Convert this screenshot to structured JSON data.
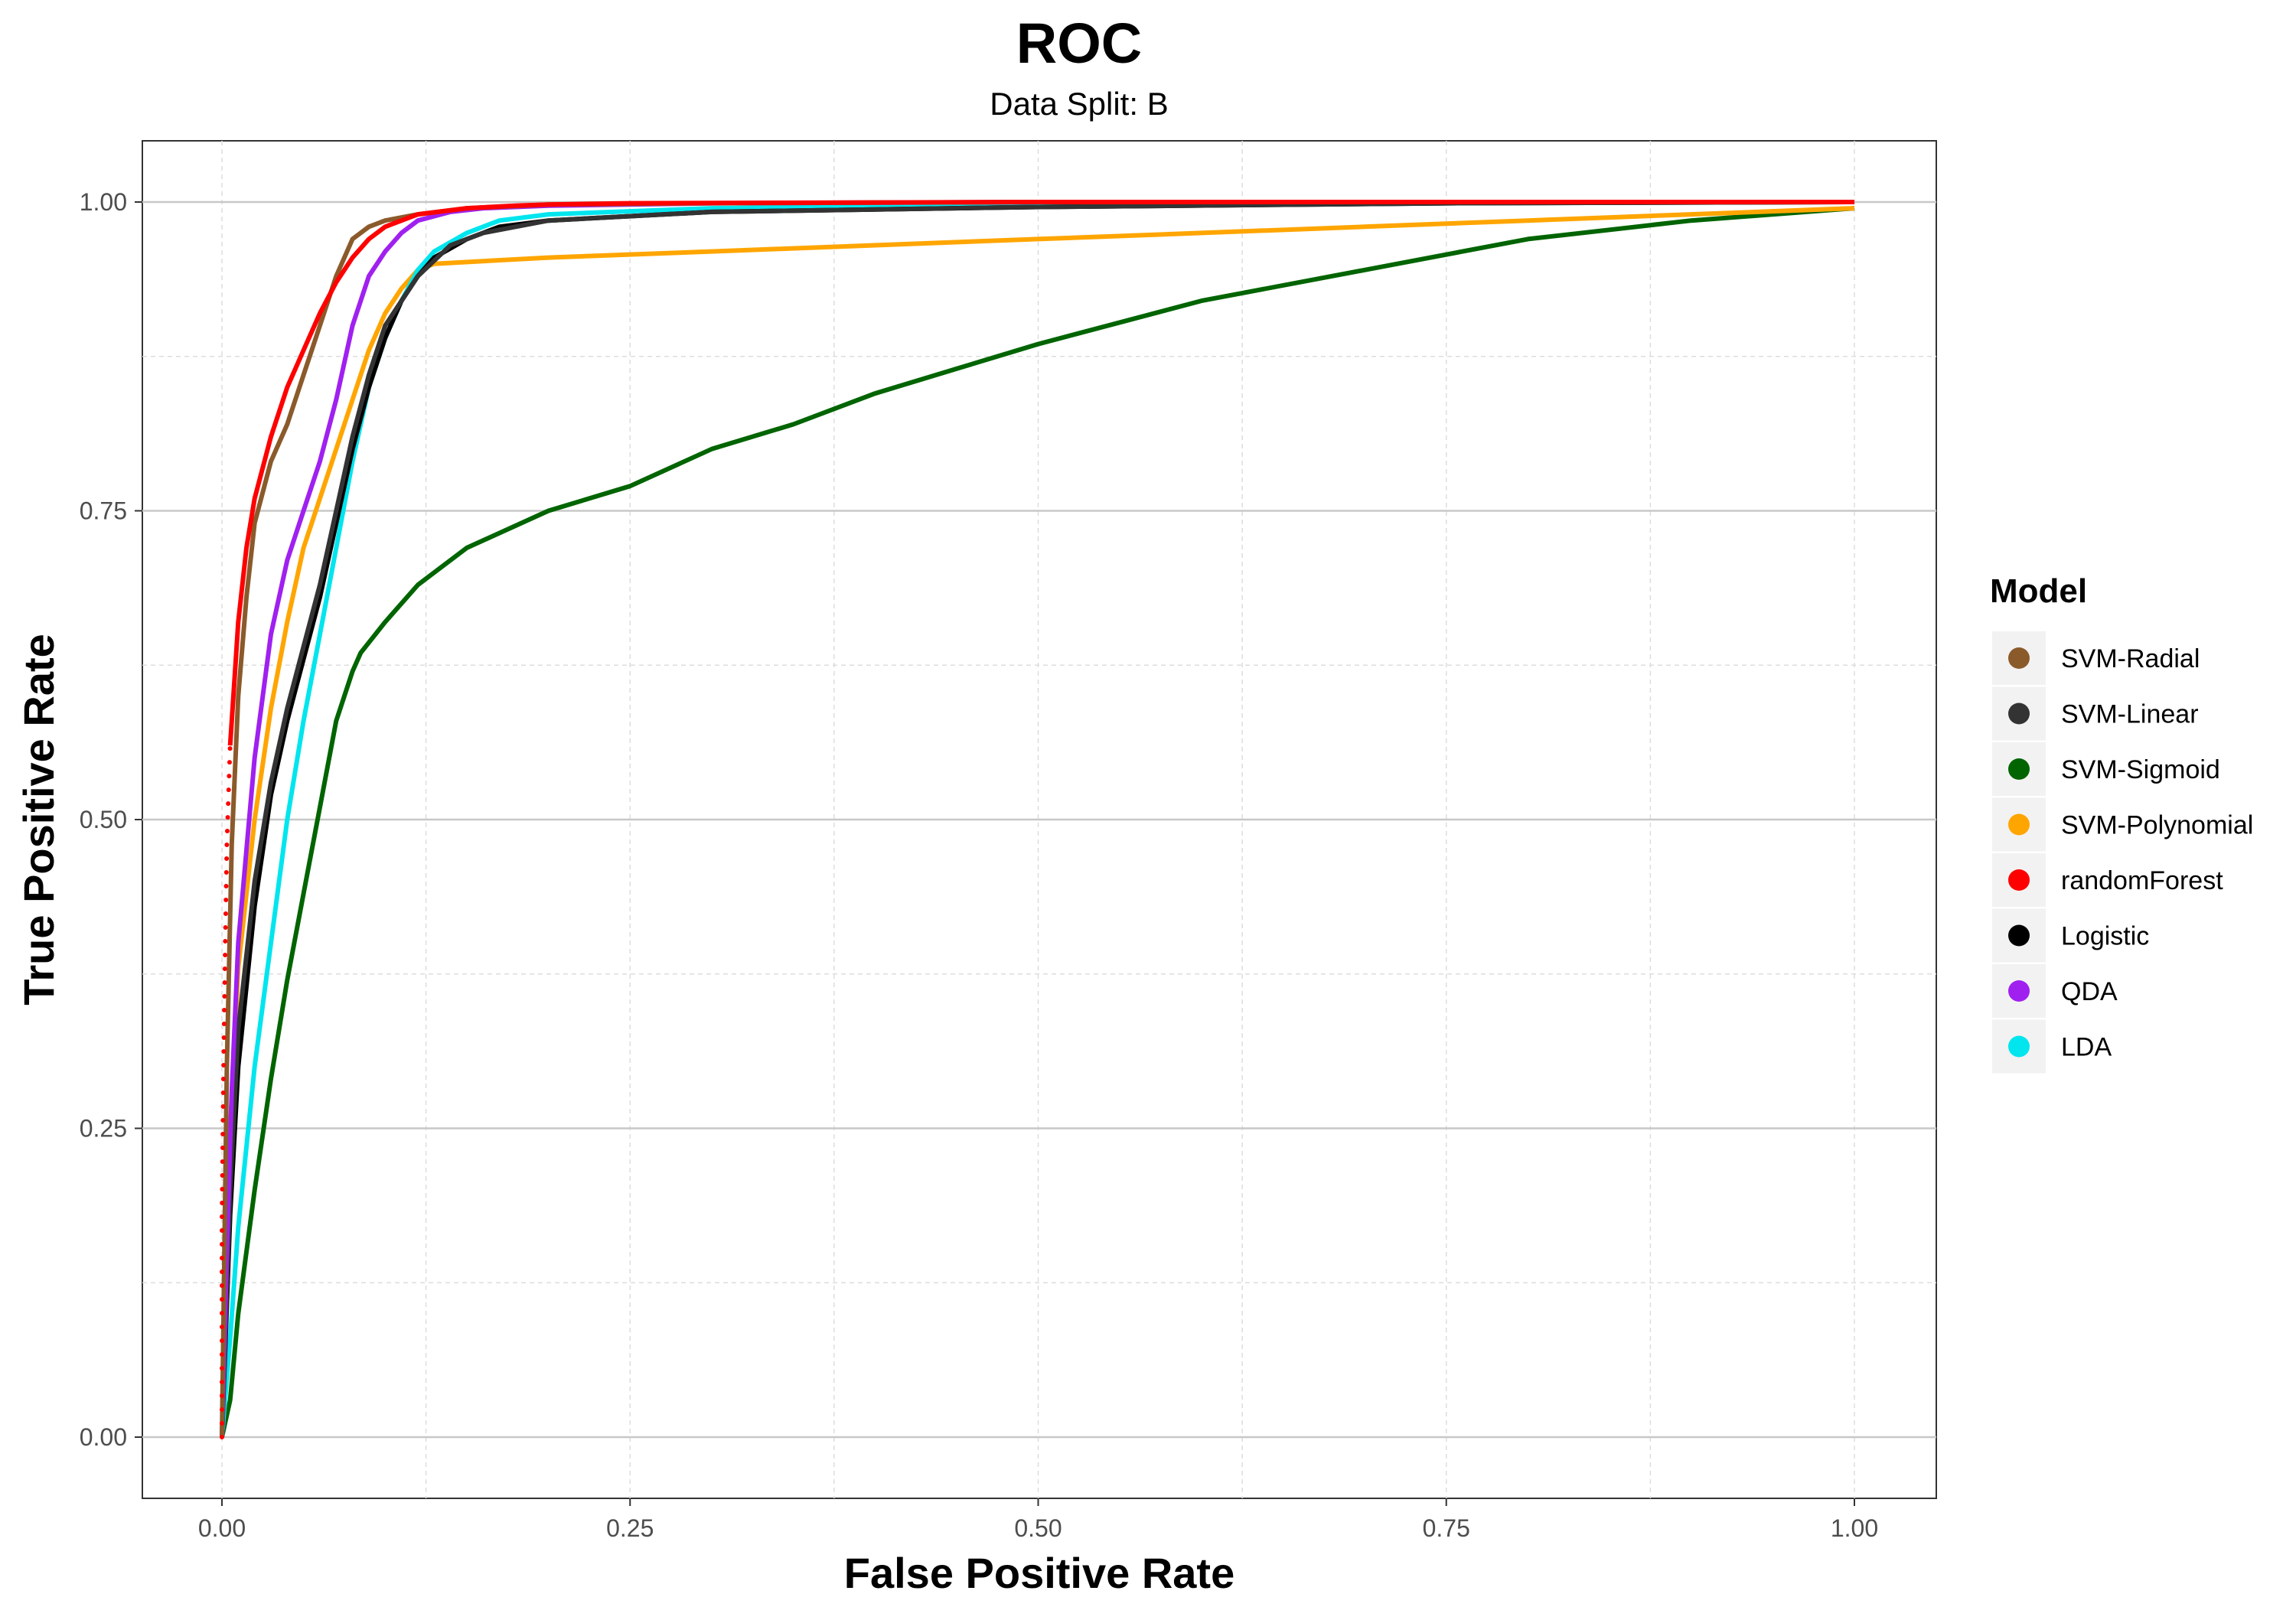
{
  "chart_data": {
    "type": "line",
    "title": "ROC",
    "subtitle": "Data Split: B",
    "xlabel": "False Positive Rate",
    "ylabel": "True Positive Rate",
    "xlim": [
      -0.05,
      1.05
    ],
    "ylim": [
      -0.05,
      1.05
    ],
    "x_ticks": [
      0,
      0.25,
      0.5,
      0.75,
      1
    ],
    "x_tick_labels": [
      "0.00",
      "0.25",
      "0.50",
      "0.75",
      "1.00"
    ],
    "y_ticks": [
      0,
      0.25,
      0.5,
      0.75,
      1
    ],
    "y_tick_labels": [
      "0.00",
      "0.25",
      "0.50",
      "0.75",
      "1.00"
    ],
    "grid": true,
    "legend": {
      "title": "Model",
      "position": "right"
    },
    "series": [
      {
        "name": "SVM-Radial",
        "color": "#8B5A2B",
        "style": "solid",
        "x": [
          0,
          0.003,
          0.006,
          0.01,
          0.015,
          0.02,
          0.03,
          0.04,
          0.05,
          0.06,
          0.07,
          0.08,
          0.09,
          0.1,
          0.12,
          0.15,
          0.2,
          0.3,
          0.5,
          0.75,
          1
        ],
        "y": [
          0,
          0.3,
          0.48,
          0.6,
          0.68,
          0.74,
          0.79,
          0.82,
          0.86,
          0.9,
          0.94,
          0.97,
          0.98,
          0.985,
          0.99,
          0.995,
          0.998,
          0.999,
          1,
          1,
          1
        ]
      },
      {
        "name": "SVM-Linear",
        "color": "#333333",
        "style": "solid",
        "x": [
          0,
          0.005,
          0.01,
          0.02,
          0.03,
          0.04,
          0.05,
          0.06,
          0.07,
          0.08,
          0.09,
          0.1,
          0.12,
          0.14,
          0.16,
          0.2,
          0.3,
          0.5,
          0.75,
          1
        ],
        "y": [
          0,
          0.2,
          0.33,
          0.45,
          0.53,
          0.59,
          0.64,
          0.69,
          0.75,
          0.81,
          0.86,
          0.9,
          0.94,
          0.965,
          0.975,
          0.985,
          0.992,
          0.996,
          0.999,
          1
        ]
      },
      {
        "name": "SVM-Sigmoid",
        "color": "#006400",
        "style": "solid",
        "x": [
          0,
          0.005,
          0.01,
          0.02,
          0.03,
          0.04,
          0.05,
          0.06,
          0.07,
          0.08,
          0.085,
          0.1,
          0.12,
          0.15,
          0.2,
          0.25,
          0.3,
          0.35,
          0.4,
          0.45,
          0.5,
          0.6,
          0.7,
          0.8,
          0.9,
          1
        ],
        "y": [
          0,
          0.03,
          0.1,
          0.2,
          0.29,
          0.37,
          0.44,
          0.51,
          0.58,
          0.62,
          0.635,
          0.66,
          0.69,
          0.72,
          0.75,
          0.77,
          0.8,
          0.82,
          0.845,
          0.865,
          0.885,
          0.92,
          0.945,
          0.97,
          0.985,
          0.995
        ]
      },
      {
        "name": "SVM-Polynomial",
        "color": "#FFA500",
        "style": "solid",
        "x": [
          0,
          0.005,
          0.01,
          0.02,
          0.03,
          0.04,
          0.05,
          0.06,
          0.07,
          0.08,
          0.09,
          0.1,
          0.11,
          0.12,
          0.13,
          0.2,
          0.3,
          0.4,
          0.5,
          0.6,
          0.7,
          0.8,
          0.9,
          1
        ],
        "y": [
          0,
          0.25,
          0.38,
          0.5,
          0.59,
          0.66,
          0.72,
          0.76,
          0.8,
          0.84,
          0.88,
          0.91,
          0.93,
          0.945,
          0.95,
          0.955,
          0.96,
          0.965,
          0.97,
          0.975,
          0.98,
          0.985,
          0.99,
          0.995
        ]
      },
      {
        "name": "randomForest",
        "color": "#FF0000",
        "style": "dotted-solid",
        "x": [
          0,
          0,
          0.001,
          0.002,
          0.003,
          0.005,
          0.008,
          0.01,
          0.015,
          0.02,
          0.03,
          0.04,
          0.05,
          0.06,
          0.07,
          0.08,
          0.09,
          0.1,
          0.12,
          0.15,
          0.18,
          0.2,
          0.25,
          0.5,
          1
        ],
        "y": [
          0,
          0.18,
          0.3,
          0.4,
          0.48,
          0.56,
          0.62,
          0.66,
          0.72,
          0.76,
          0.81,
          0.85,
          0.88,
          0.91,
          0.935,
          0.955,
          0.97,
          0.98,
          0.99,
          0.995,
          0.997,
          0.998,
          0.999,
          1,
          1
        ]
      },
      {
        "name": "Logistic",
        "color": "#000000",
        "style": "solid",
        "x": [
          0,
          0.005,
          0.01,
          0.02,
          0.03,
          0.04,
          0.05,
          0.06,
          0.07,
          0.08,
          0.09,
          0.1,
          0.11,
          0.12,
          0.13,
          0.15,
          0.17,
          0.2,
          0.3,
          0.5,
          0.75,
          1
        ],
        "y": [
          0,
          0.18,
          0.3,
          0.43,
          0.52,
          0.58,
          0.63,
          0.68,
          0.74,
          0.8,
          0.85,
          0.89,
          0.92,
          0.94,
          0.955,
          0.97,
          0.98,
          0.985,
          0.992,
          0.996,
          0.999,
          1
        ]
      },
      {
        "name": "QDA",
        "color": "#A020F0",
        "style": "solid",
        "x": [
          0,
          0.003,
          0.006,
          0.01,
          0.02,
          0.03,
          0.04,
          0.05,
          0.06,
          0.07,
          0.08,
          0.09,
          0.1,
          0.11,
          0.12,
          0.14,
          0.16,
          0.2,
          0.3,
          0.5,
          1
        ],
        "y": [
          0,
          0.15,
          0.28,
          0.4,
          0.55,
          0.65,
          0.71,
          0.75,
          0.79,
          0.84,
          0.9,
          0.94,
          0.96,
          0.975,
          0.985,
          0.992,
          0.995,
          0.997,
          0.999,
          1,
          1
        ]
      },
      {
        "name": "LDA",
        "color": "#00E5EE",
        "style": "solid",
        "x": [
          0,
          0.005,
          0.01,
          0.02,
          0.03,
          0.04,
          0.05,
          0.06,
          0.07,
          0.08,
          0.09,
          0.1,
          0.11,
          0.12,
          0.13,
          0.15,
          0.17,
          0.2,
          0.3,
          0.5,
          0.75,
          1
        ],
        "y": [
          0,
          0.08,
          0.17,
          0.3,
          0.4,
          0.5,
          0.58,
          0.65,
          0.72,
          0.79,
          0.85,
          0.89,
          0.92,
          0.945,
          0.96,
          0.975,
          0.985,
          0.99,
          0.995,
          0.998,
          1,
          1
        ]
      }
    ]
  }
}
